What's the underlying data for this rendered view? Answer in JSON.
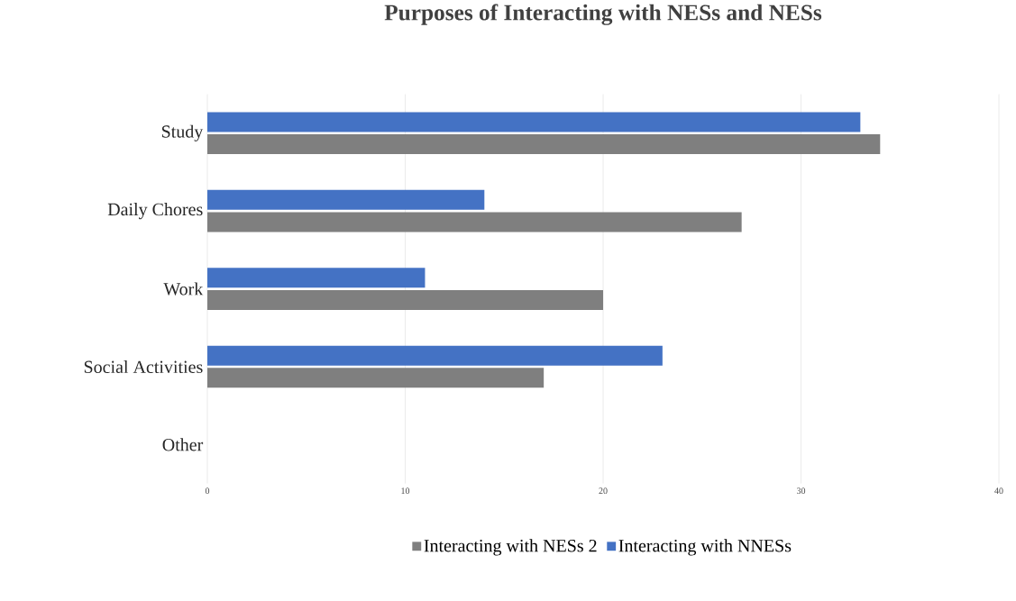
{
  "chart_data": {
    "type": "bar",
    "orientation": "horizontal",
    "title": "Purposes of Interacting with NESs and NESs",
    "categories": [
      "Study",
      "Daily Chores",
      "Work",
      "Social Activities",
      "Other"
    ],
    "series": [
      {
        "name": "Interacting with NESs 2",
        "color": "#7f7f7f",
        "values": [
          34,
          27,
          20,
          17,
          0
        ]
      },
      {
        "name": "Interacting with NNESs",
        "color": "#4472c4",
        "values": [
          33,
          14,
          11,
          23,
          0
        ]
      }
    ],
    "xlim": [
      0,
      40
    ],
    "xticks": [
      0,
      10,
      20,
      30,
      40
    ],
    "grid": "x",
    "legend": "bottom"
  }
}
